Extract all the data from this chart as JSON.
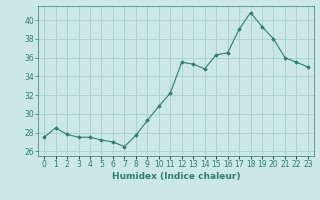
{
  "x": [
    0,
    1,
    2,
    3,
    4,
    5,
    6,
    7,
    8,
    9,
    10,
    11,
    12,
    13,
    14,
    15,
    16,
    17,
    18,
    19,
    20,
    21,
    22,
    23
  ],
  "y": [
    27.5,
    28.5,
    27.8,
    27.5,
    27.5,
    27.2,
    27.0,
    26.5,
    27.7,
    29.3,
    30.8,
    32.2,
    35.5,
    35.3,
    34.8,
    36.3,
    36.5,
    39.0,
    40.8,
    39.3,
    38.0,
    36.0,
    35.5,
    35.0
  ],
  "line_color": "#2e7d6e",
  "marker": "D",
  "marker_size": 1.8,
  "linewidth": 0.8,
  "xlabel": "Humidex (Indice chaleur)",
  "xlim": [
    -0.5,
    23.5
  ],
  "ylim": [
    25.5,
    41.5
  ],
  "yticks": [
    26,
    28,
    30,
    32,
    34,
    36,
    38,
    40
  ],
  "xtick_labels": [
    "0",
    "1",
    "2",
    "3",
    "4",
    "5",
    "6",
    "7",
    "8",
    "9",
    "10",
    "11",
    "12",
    "13",
    "14",
    "15",
    "16",
    "17",
    "18",
    "19",
    "20",
    "21",
    "22",
    "23"
  ],
  "bg_color": "#cce8e4",
  "grid_color": "#aacfcb",
  "tick_color": "#2e7d6e",
  "label_color": "#2e7d6e",
  "tick_fontsize": 5.5,
  "xlabel_fontsize": 6.5
}
